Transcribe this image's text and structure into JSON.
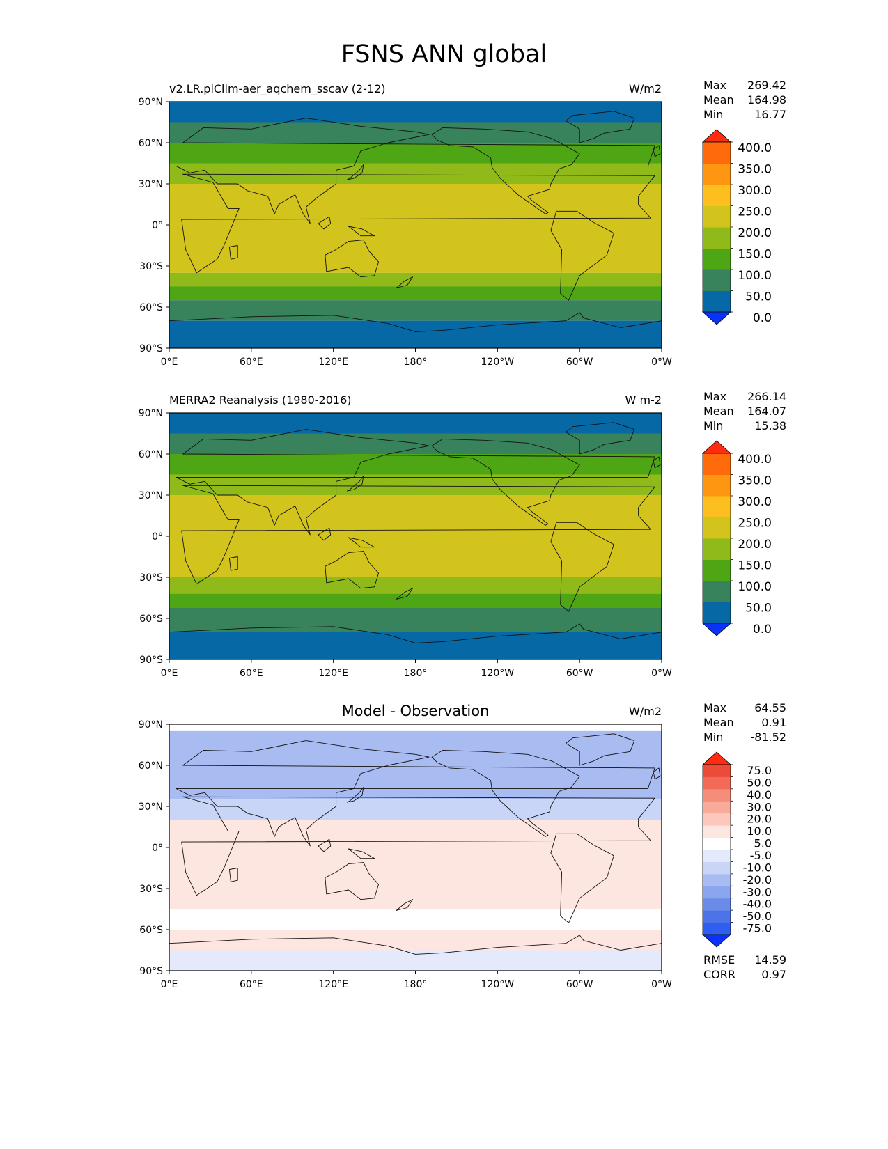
{
  "title": "FSNS ANN global",
  "axes": {
    "lat_ticks": [
      "90°N",
      "60°N",
      "30°N",
      "0°",
      "30°S",
      "60°S",
      "90°S"
    ],
    "lon_ticks": [
      "0°E",
      "60°E",
      "120°E",
      "180°",
      "120°W",
      "60°W",
      "0°W"
    ]
  },
  "stat_labels": {
    "max": "Max",
    "mean": "Mean",
    "min": "Min",
    "rmse": "RMSE",
    "corr": "CORR"
  },
  "panels": [
    {
      "id": "test",
      "left_title": "v2.LR.piClim-aer_aqchem_sscav (2-12)",
      "center_title": "",
      "units": "W/m2",
      "stats": {
        "max": "269.42",
        "mean": "164.98",
        "min": "16.77"
      },
      "colorbar": {
        "labels": [
          "400.0",
          "350.0",
          "300.0",
          "250.0",
          "200.0",
          "150.0",
          "100.0",
          "50.0",
          "0.0"
        ],
        "colors": [
          "#0a32fa",
          "#0669a5",
          "#38825c",
          "#4ea614",
          "#8fba1a",
          "#d2c41d",
          "#fdbe1f",
          "#fe9611",
          "#fe6a0c",
          "#fe2c10"
        ]
      }
    },
    {
      "id": "reference",
      "left_title": "MERRA2 Reanalysis (1980-2016)",
      "center_title": "",
      "units": "W m-2",
      "stats": {
        "max": "266.14",
        "mean": "164.07",
        "min": "15.38"
      },
      "colorbar": {
        "labels": [
          "400.0",
          "350.0",
          "300.0",
          "250.0",
          "200.0",
          "150.0",
          "100.0",
          "50.0",
          "0.0"
        ],
        "colors": [
          "#0a32fa",
          "#0669a5",
          "#38825c",
          "#4ea614",
          "#8fba1a",
          "#d2c41d",
          "#fdbe1f",
          "#fe9611",
          "#fe6a0c",
          "#fe2c10"
        ]
      }
    },
    {
      "id": "difference",
      "left_title": "",
      "center_title": "Model - Observation",
      "units": "W/m2",
      "stats": {
        "max": "64.55",
        "mean": "0.91",
        "min": "-81.52",
        "rmse": "14.59",
        "corr": "0.97"
      },
      "colorbar": {
        "labels": [
          "75.0",
          "50.0",
          "40.0",
          "30.0",
          "20.0",
          "10.0",
          "5.0",
          "-5.0",
          "-10.0",
          "-20.0",
          "-30.0",
          "-40.0",
          "-50.0",
          "-75.0"
        ],
        "colors": [
          "#0a32fa",
          "#2f5ff0",
          "#4c74e8",
          "#6a8ce8",
          "#8ba5ee",
          "#a9bcf2",
          "#c8d5f7",
          "#e4eafc",
          "#ffffff",
          "#fde5e0",
          "#fcc8bd",
          "#f9ab9b",
          "#f68c7a",
          "#f26b59",
          "#ec4b3a",
          "#fe2c10"
        ]
      }
    }
  ],
  "chart_data": [
    {
      "type": "heatmap",
      "map_projection": "PlateCarree, 0°E to 360°E",
      "left_title": "v2.LR.piClim-aer_aqchem_sscav (2-12)",
      "units": "W/m2",
      "xlim": [
        0,
        360
      ],
      "ylim": [
        -90,
        90
      ],
      "levels": [
        0,
        50,
        100,
        150,
        200,
        250,
        300,
        350,
        400
      ],
      "zonal_bands": [
        {
          "lat": [
            75,
            90
          ],
          "value": 40
        },
        {
          "lat": [
            60,
            75
          ],
          "value": 80
        },
        {
          "lat": [
            45,
            60
          ],
          "value": 120
        },
        {
          "lat": [
            30,
            45
          ],
          "value": 170
        },
        {
          "lat": [
            -35,
            30
          ],
          "value": 225
        },
        {
          "lat": [
            -45,
            -35
          ],
          "value": 170
        },
        {
          "lat": [
            -55,
            -45
          ],
          "value": 120
        },
        {
          "lat": [
            -70,
            -55
          ],
          "value": 80
        },
        {
          "lat": [
            -90,
            -70
          ],
          "value": 40
        }
      ],
      "stats": {
        "max": 269.42,
        "mean": 164.98,
        "min": 16.77
      }
    },
    {
      "type": "heatmap",
      "map_projection": "PlateCarree, 0°E to 360°E",
      "left_title": "MERRA2 Reanalysis (1980-2016)",
      "units": "W m-2",
      "xlim": [
        0,
        360
      ],
      "ylim": [
        -90,
        90
      ],
      "levels": [
        0,
        50,
        100,
        150,
        200,
        250,
        300,
        350,
        400
      ],
      "zonal_bands": [
        {
          "lat": [
            75,
            90
          ],
          "value": 40
        },
        {
          "lat": [
            60,
            75
          ],
          "value": 80
        },
        {
          "lat": [
            45,
            60
          ],
          "value": 120
        },
        {
          "lat": [
            30,
            45
          ],
          "value": 170
        },
        {
          "lat": [
            -30,
            30
          ],
          "value": 225
        },
        {
          "lat": [
            -42,
            -30
          ],
          "value": 175
        },
        {
          "lat": [
            -52,
            -42
          ],
          "value": 130
        },
        {
          "lat": [
            -70,
            -52
          ],
          "value": 85
        },
        {
          "lat": [
            -90,
            -70
          ],
          "value": 40
        }
      ],
      "stats": {
        "max": 266.14,
        "mean": 164.07,
        "min": 15.38
      }
    },
    {
      "type": "heatmap",
      "map_projection": "PlateCarree, 0°E to 360°E",
      "center_title": "Model - Observation",
      "units": "W/m2",
      "xlim": [
        0,
        360
      ],
      "ylim": [
        -90,
        90
      ],
      "levels": [
        -75,
        -50,
        -40,
        -30,
        -20,
        -10,
        -5,
        5,
        10,
        20,
        30,
        40,
        50,
        75
      ],
      "zonal_bands": [
        {
          "lat": [
            60,
            85
          ],
          "value": -12
        },
        {
          "lat": [
            35,
            60
          ],
          "value": -18
        },
        {
          "lat": [
            20,
            35
          ],
          "value": -8
        },
        {
          "lat": [
            -10,
            20
          ],
          "value": 12
        },
        {
          "lat": [
            -45,
            -10
          ],
          "value": 15
        },
        {
          "lat": [
            -60,
            -45
          ],
          "value": 8
        },
        {
          "lat": [
            -75,
            -60
          ],
          "value": 15
        },
        {
          "lat": [
            -90,
            -75
          ],
          "value": 0
        }
      ],
      "stats": {
        "max": 64.55,
        "mean": 0.91,
        "min": -81.52,
        "rmse": 14.59,
        "corr": 0.97
      }
    }
  ]
}
